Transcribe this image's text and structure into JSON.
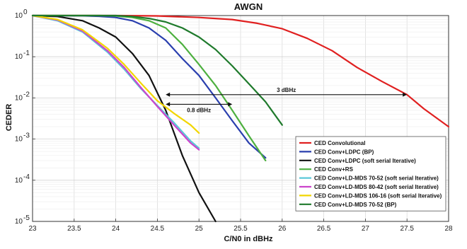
{
  "chart_data": {
    "type": "line",
    "title": "AWGN",
    "xlabel": "C/N0 in dBHz",
    "ylabel": "CEDER",
    "xlim": [
      23,
      28
    ],
    "ylim": [
      1e-05,
      1
    ],
    "yscale": "log",
    "grid": true,
    "legend_position": "bottom-right",
    "x_ticks": [
      23,
      23.5,
      24,
      24.5,
      25,
      25.5,
      26,
      26.5,
      27,
      27.5,
      28
    ],
    "x_tick_labels": [
      "23",
      "23.5",
      "24",
      "24.5",
      "25",
      "25.5",
      "26",
      "26.5",
      "27",
      "27.5",
      "28"
    ],
    "y_ticks": [
      1,
      0.1,
      0.01,
      0.001,
      0.0001,
      1e-05
    ],
    "y_tick_labels": [
      {
        "base": "10",
        "exp": "0"
      },
      {
        "base": "10",
        "exp": "-1"
      },
      {
        "base": "10",
        "exp": "-2"
      },
      {
        "base": "10",
        "exp": "-3"
      },
      {
        "base": "10",
        "exp": "-4"
      },
      {
        "base": "10",
        "exp": "-5"
      }
    ],
    "series": [
      {
        "name": "CED Convolutional",
        "color": "#e02020",
        "x": [
          23,
          24,
          24.5,
          25,
          25.4,
          25.7,
          26,
          26.3,
          26.6,
          26.9,
          27.2,
          27.5,
          27.7,
          28
        ],
        "y": [
          1,
          1,
          0.98,
          0.9,
          0.8,
          0.65,
          0.48,
          0.28,
          0.14,
          0.055,
          0.025,
          0.012,
          0.0055,
          0.002
        ]
      },
      {
        "name": "CED Conv+LDPC (BP)",
        "color": "#2a3fae",
        "x": [
          23,
          23.6,
          23.8,
          24,
          24.2,
          24.4,
          24.6,
          24.8,
          25,
          25.2,
          25.4,
          25.6,
          25.8
        ],
        "y": [
          1,
          0.99,
          0.96,
          0.9,
          0.75,
          0.5,
          0.25,
          0.09,
          0.035,
          0.01,
          0.0028,
          0.0008,
          0.00035
        ]
      },
      {
        "name": "CED Conv+LDPC (soft serial Iterative)",
        "color": "#111111",
        "x": [
          23,
          23.3,
          23.6,
          23.8,
          24,
          24.2,
          24.4,
          24.6,
          24.8,
          25,
          25.2
        ],
        "y": [
          1,
          0.95,
          0.75,
          0.5,
          0.3,
          0.12,
          0.035,
          0.005,
          0.0004,
          5e-05,
          1e-05
        ]
      },
      {
        "name": "CED Conv+RS",
        "color": "#4db03f",
        "x": [
          23,
          23.8,
          24,
          24.2,
          24.4,
          24.6,
          24.8,
          25,
          25.2,
          25.4,
          25.6,
          25.8
        ],
        "y": [
          1,
          1,
          0.98,
          0.9,
          0.75,
          0.5,
          0.2,
          0.065,
          0.02,
          0.005,
          0.0012,
          0.0003
        ]
      },
      {
        "name": "CED Conv+LD-MDS 70-52 (soft serial Iterative)",
        "color": "#5bc8d8",
        "x": [
          23,
          23.3,
          23.6,
          23.9,
          24.1,
          24.3,
          24.5,
          24.7,
          24.9,
          25
        ],
        "y": [
          1,
          0.75,
          0.4,
          0.13,
          0.05,
          0.017,
          0.0065,
          0.0025,
          0.0009,
          0.0006
        ]
      },
      {
        "name": "CED Conv+LD-MDS 80-42 (soft serial Iterative)",
        "color": "#cc44cc",
        "x": [
          23,
          23.3,
          23.6,
          23.9,
          24.1,
          24.3,
          24.5,
          24.7,
          24.9,
          25
        ],
        "y": [
          1,
          0.78,
          0.42,
          0.14,
          0.055,
          0.018,
          0.0062,
          0.0022,
          0.0008,
          0.00055
        ]
      },
      {
        "name": "CED Conv+LD-MDS 106-16 (soft serial Iterative)",
        "color": "#f2d600",
        "x": [
          23,
          23.3,
          23.6,
          23.9,
          24.1,
          24.3,
          24.5,
          24.7,
          24.9,
          25
        ],
        "y": [
          1,
          0.8,
          0.45,
          0.16,
          0.065,
          0.023,
          0.0085,
          0.0042,
          0.0022,
          0.0014
        ]
      },
      {
        "name": "CED Conv+LD-MDS 70-52 (BP)",
        "color": "#1f7a2c",
        "x": [
          23,
          24,
          24.2,
          24.4,
          24.6,
          24.8,
          25,
          25.2,
          25.4,
          25.6,
          25.8,
          26
        ],
        "y": [
          1,
          1,
          0.95,
          0.85,
          0.7,
          0.5,
          0.3,
          0.15,
          0.06,
          0.022,
          0.008,
          0.0022
        ]
      }
    ],
    "annotations": [
      {
        "text": "3 dBHz",
        "x1": 24.6,
        "x2": 27.5,
        "y": 0.012
      },
      {
        "text": "0.8 dBHz",
        "x1": 24.6,
        "x2": 25.4,
        "y": 0.007
      }
    ]
  }
}
